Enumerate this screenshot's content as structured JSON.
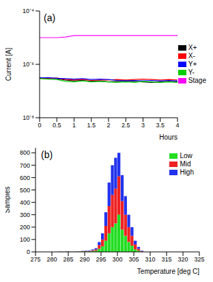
{
  "chart_data": [
    {
      "type": "line",
      "title": "(a)",
      "x_label": "Hours",
      "y_label": "Current [A]",
      "log": "y",
      "grid": false,
      "legend": "right",
      "x": [
        0,
        0.25,
        0.5,
        0.75,
        1,
        1.25,
        1.5,
        1.75,
        2,
        2.25,
        2.5,
        2.75,
        3,
        3.25,
        3.5,
        3.75,
        4
      ],
      "xlim": [
        0,
        4
      ],
      "xticks": [
        0,
        0.5,
        1,
        1.5,
        2,
        2.5,
        3,
        3.5,
        4
      ],
      "ylim": [
        1e-08,
        0.0001
      ],
      "yticks": [
        {
          "value": 1e-08,
          "label": "10⁻⁸"
        },
        {
          "value": 1e-06,
          "label": "10⁻⁶"
        },
        {
          "value": 0.0001,
          "label": "10⁻⁴"
        }
      ],
      "series": [
        {
          "name": "X+",
          "color": "#000000",
          "values": [
            3.2e-07,
            3e-07,
            2.9e-07,
            2.6e-07,
            2.4e-07,
            2.5e-07,
            2.3e-07,
            2.4e-07,
            2.2e-07,
            2.3e-07,
            2.4e-07,
            2.3e-07,
            2.2e-07,
            2.1e-07,
            2.2e-07,
            2.3e-07,
            2.2e-07
          ]
        },
        {
          "name": "X-",
          "color": "#ff0000",
          "values": [
            3e-07,
            2.9e-07,
            3.1e-07,
            2.7e-07,
            2.6e-07,
            2.7e-07,
            2.5e-07,
            2.6e-07,
            2.6e-07,
            2.7e-07,
            2.6e-07,
            2.7e-07,
            2.8e-07,
            2.7e-07,
            2.6e-07,
            2.7e-07,
            2.6e-07
          ]
        },
        {
          "name": "Y+",
          "color": "#0000ff",
          "values": [
            3.1e-07,
            3.2e-07,
            3e-07,
            2.9e-07,
            2.8e-07,
            2.9e-07,
            2.7e-07,
            2.8e-07,
            2.7e-07,
            2.5e-07,
            2.4e-07,
            2.5e-07,
            2.4e-07,
            2.5e-07,
            2.4e-07,
            2.5e-07,
            2.4e-07
          ]
        },
        {
          "name": "Y-",
          "color": "#00cc00",
          "values": [
            2.9e-07,
            2.8e-07,
            2.7e-07,
            2.3e-07,
            2.2e-07,
            2.4e-07,
            2.2e-07,
            2.3e-07,
            2.2e-07,
            2.1e-07,
            2.2e-07,
            2.1e-07,
            2.3e-07,
            2.2e-07,
            2.1e-07,
            2.2e-07,
            2.1e-07
          ]
        },
        {
          "name": "Stage",
          "color": "#ff00ff",
          "values": [
            1e-05,
            1e-05,
            1e-05,
            1.05e-05,
            1.2e-05,
            1.2e-05,
            1.2e-05,
            1.2e-05,
            1.2e-05,
            1.2e-05,
            1.2e-05,
            1.2e-05,
            1.2e-05,
            1.2e-05,
            1.2e-05,
            1.2e-05,
            1.2e-05
          ]
        }
      ]
    },
    {
      "type": "histogram",
      "title": "(b)",
      "x_label": "Temperature [deg C]",
      "y_label": "Samples",
      "stacked": true,
      "grid": false,
      "legend": "upper right",
      "bins": [
        282,
        283,
        284,
        285,
        286,
        287,
        288,
        289,
        290,
        291,
        292,
        293,
        294,
        295,
        296,
        297,
        298,
        299,
        300,
        301,
        302,
        303,
        304,
        305,
        306,
        307,
        308
      ],
      "xlim": [
        275,
        325
      ],
      "xticks": [
        275,
        280,
        285,
        290,
        295,
        300,
        305,
        310,
        315,
        320,
        325
      ],
      "ylim": [
        0,
        840
      ],
      "yticks": [
        0,
        100,
        200,
        300,
        400,
        500,
        600,
        700,
        800
      ],
      "series": [
        {
          "name": "Low",
          "color": "#22dd22",
          "values": [
            1,
            1,
            2,
            1,
            1,
            1,
            2,
            3,
            4,
            4,
            7,
            10,
            25,
            45,
            90,
            150,
            200,
            230,
            300,
            180,
            130,
            80,
            50,
            20,
            10,
            2
          ]
        },
        {
          "name": "Mid",
          "color": "#ee2222",
          "values": [
            1,
            1,
            2,
            1,
            1,
            1,
            2,
            3,
            3,
            4,
            7,
            10,
            30,
            55,
            120,
            220,
            260,
            280,
            310,
            230,
            170,
            120,
            80,
            40,
            15,
            4
          ]
        },
        {
          "name": "High",
          "color": "#2233ee",
          "values": [
            1,
            0,
            1,
            1,
            0,
            1,
            1,
            2,
            3,
            4,
            6,
            10,
            25,
            50,
            110,
            190,
            240,
            250,
            190,
            210,
            150,
            100,
            70,
            30,
            15,
            4
          ]
        }
      ]
    }
  ]
}
